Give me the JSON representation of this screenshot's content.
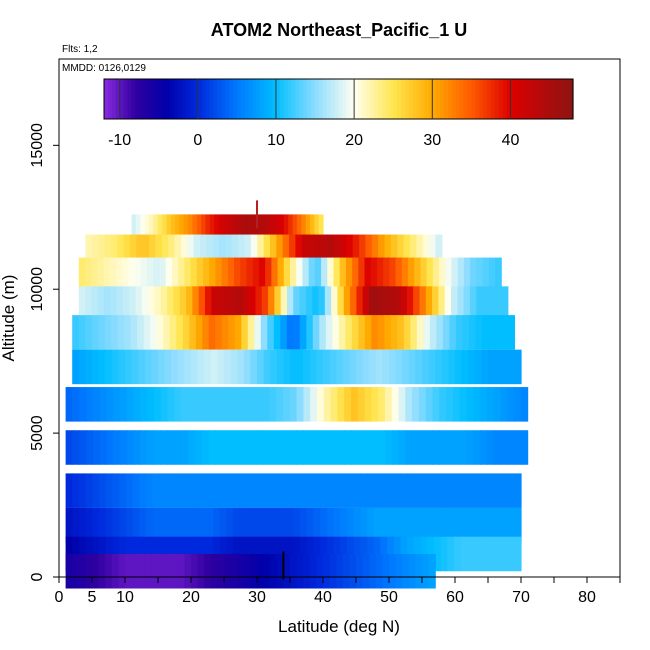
{
  "chart_data": {
    "type": "heatmap",
    "title": "ATOM2 Northeast_Pacific_1 U",
    "flights_note": "Flts: 1,2",
    "date_note": "MMDD: 0126,0129",
    "xlabel": "Latitude (deg N)",
    "ylabel": "Altitude (m)",
    "xlim": [
      0,
      85
    ],
    "ylim": [
      0,
      18000
    ],
    "x_ticks": [
      0,
      5,
      10,
      20,
      30,
      40,
      50,
      60,
      70,
      80
    ],
    "y_ticks": [
      0,
      5000,
      10000,
      15000
    ],
    "y_tick_labels": [
      "0",
      "5000",
      "10000",
      "15000"
    ],
    "colorbar": {
      "min": -12,
      "max": 48,
      "ticks": [
        -10,
        0,
        10,
        20,
        30,
        40
      ],
      "tick_labels": [
        "-10",
        "0",
        "10",
        "20",
        "30",
        "40"
      ]
    },
    "u_field_rows": [
      {
        "alt": 12000,
        "lat_start": 11,
        "lat_end": 40,
        "u": [
          18,
          22,
          28,
          32,
          38,
          42,
          45,
          44,
          40,
          33,
          25
        ]
      },
      {
        "alt": 11300,
        "lat_start": 4,
        "lat_end": 58,
        "u": [
          22,
          24,
          28,
          24,
          18,
          16,
          18,
          30,
          42,
          44,
          38,
          30,
          24,
          18
        ]
      },
      {
        "alt": 10500,
        "lat_start": 3,
        "lat_end": 67,
        "u": [
          24,
          22,
          20,
          18,
          24,
          30,
          36,
          40,
          24,
          12,
          28,
          40,
          36,
          28,
          20,
          14,
          12
        ]
      },
      {
        "alt": 9500,
        "lat_start": 3,
        "lat_end": 68,
        "u": [
          18,
          16,
          18,
          22,
          28,
          42,
          44,
          36,
          14,
          10,
          30,
          46,
          44,
          32,
          18,
          12,
          12
        ]
      },
      {
        "alt": 8500,
        "lat_start": 2,
        "lat_end": 69,
        "u": [
          12,
          14,
          16,
          20,
          26,
          34,
          30,
          14,
          4,
          16,
          24,
          32,
          28,
          18,
          12,
          10,
          10
        ]
      },
      {
        "alt": 7300,
        "lat_start": 2,
        "lat_end": 70,
        "u": [
          8,
          10,
          12,
          14,
          16,
          18,
          16,
          12,
          10,
          12,
          14,
          16,
          14,
          12,
          10,
          8,
          8
        ]
      },
      {
        "alt": 6000,
        "lat_start": 1,
        "lat_end": 71,
        "u": [
          4,
          6,
          8,
          10,
          12,
          12,
          12,
          12,
          14,
          22,
          28,
          24,
          16,
          12,
          10,
          8,
          6
        ]
      },
      {
        "alt": 4500,
        "lat_start": 1,
        "lat_end": 71,
        "u": [
          2,
          4,
          6,
          8,
          8,
          10,
          10,
          10,
          10,
          10,
          10,
          10,
          8,
          8,
          8,
          6,
          6
        ]
      },
      {
        "alt": 3000,
        "lat_start": 1,
        "lat_end": 70,
        "u": [
          0,
          2,
          4,
          6,
          6,
          6,
          6,
          6,
          6,
          6,
          6,
          6,
          6,
          6,
          6,
          6,
          6
        ]
      },
      {
        "alt": 1800,
        "lat_start": 1,
        "lat_end": 70,
        "u": [
          -2,
          0,
          2,
          4,
          4,
          4,
          2,
          2,
          2,
          4,
          6,
          8,
          8,
          8,
          8,
          8,
          8
        ]
      },
      {
        "alt": 800,
        "lat_start": 1,
        "lat_end": 70,
        "u": [
          -4,
          -2,
          0,
          0,
          0,
          0,
          -2,
          -2,
          -2,
          0,
          2,
          4,
          8,
          10,
          12,
          12,
          12
        ]
      },
      {
        "alt": 200,
        "lat_start": 1,
        "lat_end": 57,
        "u": [
          -6,
          -8,
          -10,
          -10,
          -10,
          -8,
          -6,
          -4,
          -2,
          0,
          2,
          4,
          6,
          8
        ]
      }
    ],
    "markers": [
      {
        "lat": 30,
        "alt": 12600,
        "color": "#b22222"
      },
      {
        "lat": 34,
        "alt": 400,
        "color": "#000000"
      }
    ]
  }
}
